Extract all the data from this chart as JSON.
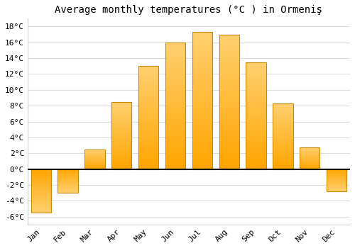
{
  "months": [
    "Jan",
    "Feb",
    "Mar",
    "Apr",
    "May",
    "Jun",
    "Jul",
    "Aug",
    "Sep",
    "Oct",
    "Nov",
    "Dec"
  ],
  "temperatures": [
    -5.5,
    -3.0,
    2.5,
    8.5,
    13.0,
    16.0,
    17.3,
    17.0,
    13.5,
    8.3,
    2.7,
    -2.8
  ],
  "bar_color_bottom": "#FFA500",
  "bar_color_top": "#FFD070",
  "bar_edge_color": "#CC8800",
  "title": "Average monthly temperatures (°C ) in Ormeniş",
  "ylim": [
    -7,
    19
  ],
  "yticks": [
    -6,
    -4,
    -2,
    0,
    2,
    4,
    6,
    8,
    10,
    12,
    14,
    16,
    18
  ],
  "ytick_labels": [
    "-6°C",
    "-4°C",
    "-2°C",
    "0°C",
    "2°C",
    "4°C",
    "6°C",
    "8°C",
    "10°C",
    "12°C",
    "14°C",
    "16°C",
    "18°C"
  ],
  "background_color": "#ffffff",
  "plot_bg_color": "#ffffff",
  "grid_color": "#dddddd",
  "zero_line_color": "#000000",
  "title_fontsize": 10,
  "tick_fontsize": 8,
  "bar_width": 0.75
}
